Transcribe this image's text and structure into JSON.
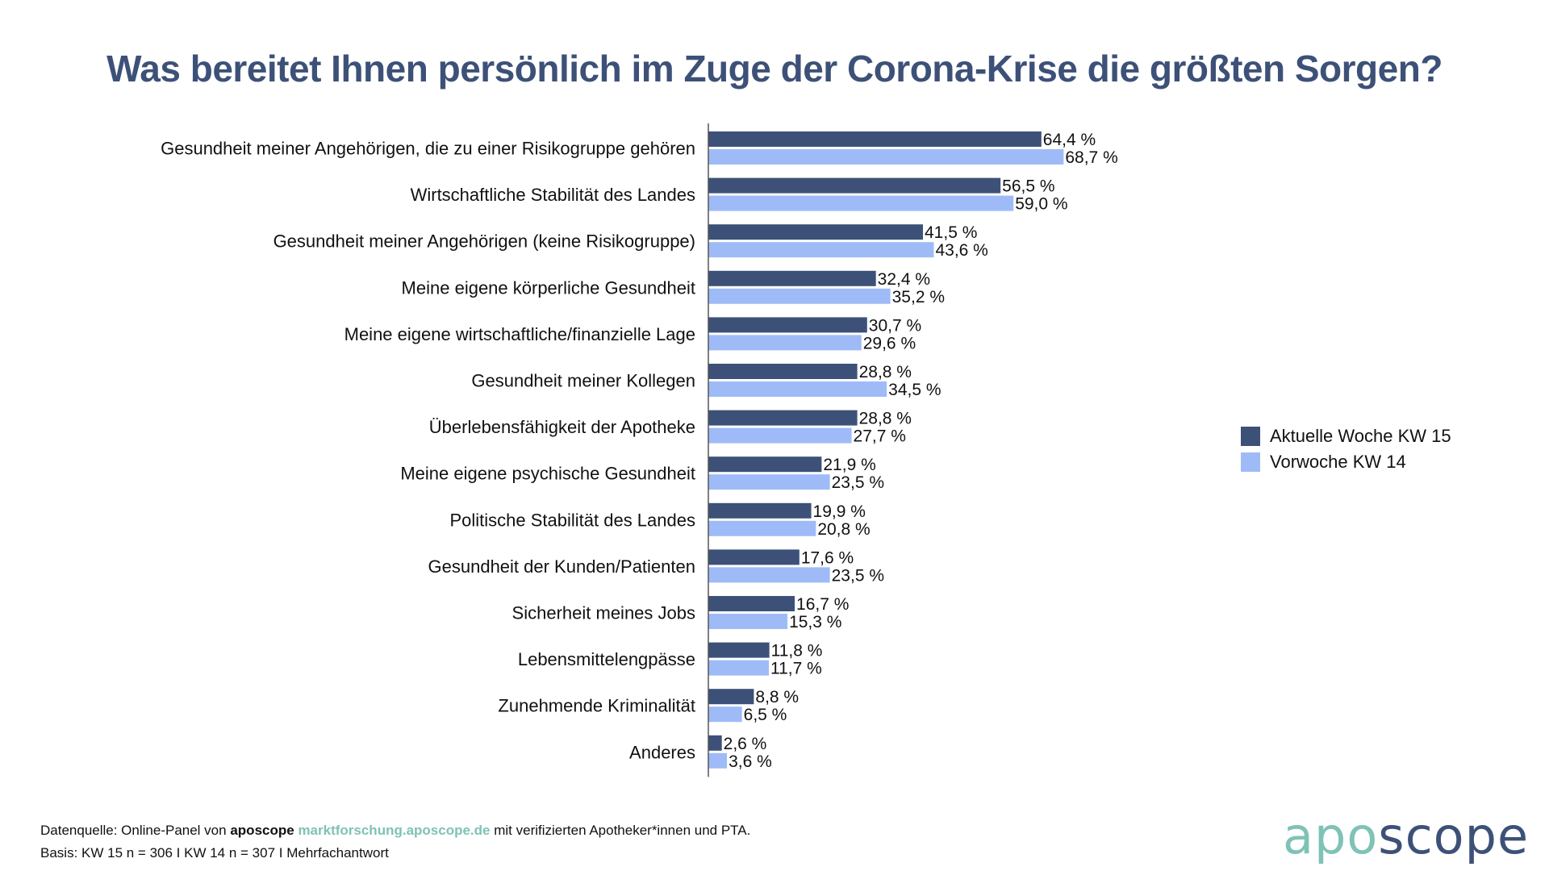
{
  "title": "Was bereitet Ihnen persönlich im Zuge der Corona-Krise die größten Sorgen?",
  "colors": {
    "series1": "#3d5178",
    "series2": "#9fbbf7",
    "title": "#3d5178",
    "logo_teal": "#7fc2b6",
    "logo_navy": "#3d5178"
  },
  "chart_data": {
    "type": "bar",
    "orientation": "horizontal",
    "title": "Was bereitet Ihnen persönlich im Zuge der Corona-Krise die größten Sorgen?",
    "xlabel": "",
    "ylabel": "",
    "xlim": [
      0,
      100
    ],
    "grid": false,
    "legend_position": "right",
    "categories": [
      "Gesundheit meiner Angehörigen, die zu einer Risikogruppe gehören",
      "Wirtschaftliche Stabilität des Landes",
      "Gesundheit meiner Angehörigen (keine Risikogruppe)",
      "Meine eigene körperliche Gesundheit",
      "Meine eigene wirtschaftliche/finanzielle Lage",
      "Gesundheit meiner Kollegen",
      "Überlebensfähigkeit der Apotheke",
      "Meine eigene psychische Gesundheit",
      "Politische Stabilität des Landes",
      "Gesundheit der Kunden/Patienten",
      "Sicherheit meines Jobs",
      "Lebensmittelengpässe",
      "Zunehmende Kriminalität",
      "Anderes"
    ],
    "series": [
      {
        "name": "Aktuelle Woche KW 15",
        "values": [
          64.4,
          56.5,
          41.5,
          32.4,
          30.7,
          28.8,
          28.8,
          21.9,
          19.9,
          17.6,
          16.7,
          11.8,
          8.8,
          2.6
        ],
        "labels": [
          "64,4 %",
          "56,5 %",
          "41,5 %",
          "32,4 %",
          "30,7 %",
          "28,8 %",
          "28,8 %",
          "21,9 %",
          "19,9 %",
          "17,6 %",
          "16,7 %",
          "11,8 %",
          "8,8 %",
          "2,6 %"
        ]
      },
      {
        "name": "Vorwoche KW 14",
        "values": [
          68.7,
          59.0,
          43.6,
          35.2,
          29.6,
          34.5,
          27.7,
          23.5,
          20.8,
          23.5,
          15.3,
          11.7,
          6.5,
          3.6
        ],
        "labels": [
          "68,7 %",
          "59,0 %",
          "43,6 %",
          "35,2 %",
          "29,6 %",
          "34,5 %",
          "27,7 %",
          "23,5 %",
          "20,8 %",
          "23,5 %",
          "15,3 %",
          "11,7 %",
          "6,5 %",
          "3,6 %"
        ]
      }
    ]
  },
  "footer": {
    "source_prefix": "Datenquelle: Online-Panel von",
    "source_brand": "aposcope",
    "source_link": "marktforschung.aposcope.de",
    "source_suffix": "mit verifizierten Apotheker*innen und PTA.",
    "basis": "Basis: KW 15 n = 306 I KW 14 n = 307 I Mehrfachantwort"
  },
  "logo": {
    "part1": "apo",
    "part2": "scope"
  }
}
